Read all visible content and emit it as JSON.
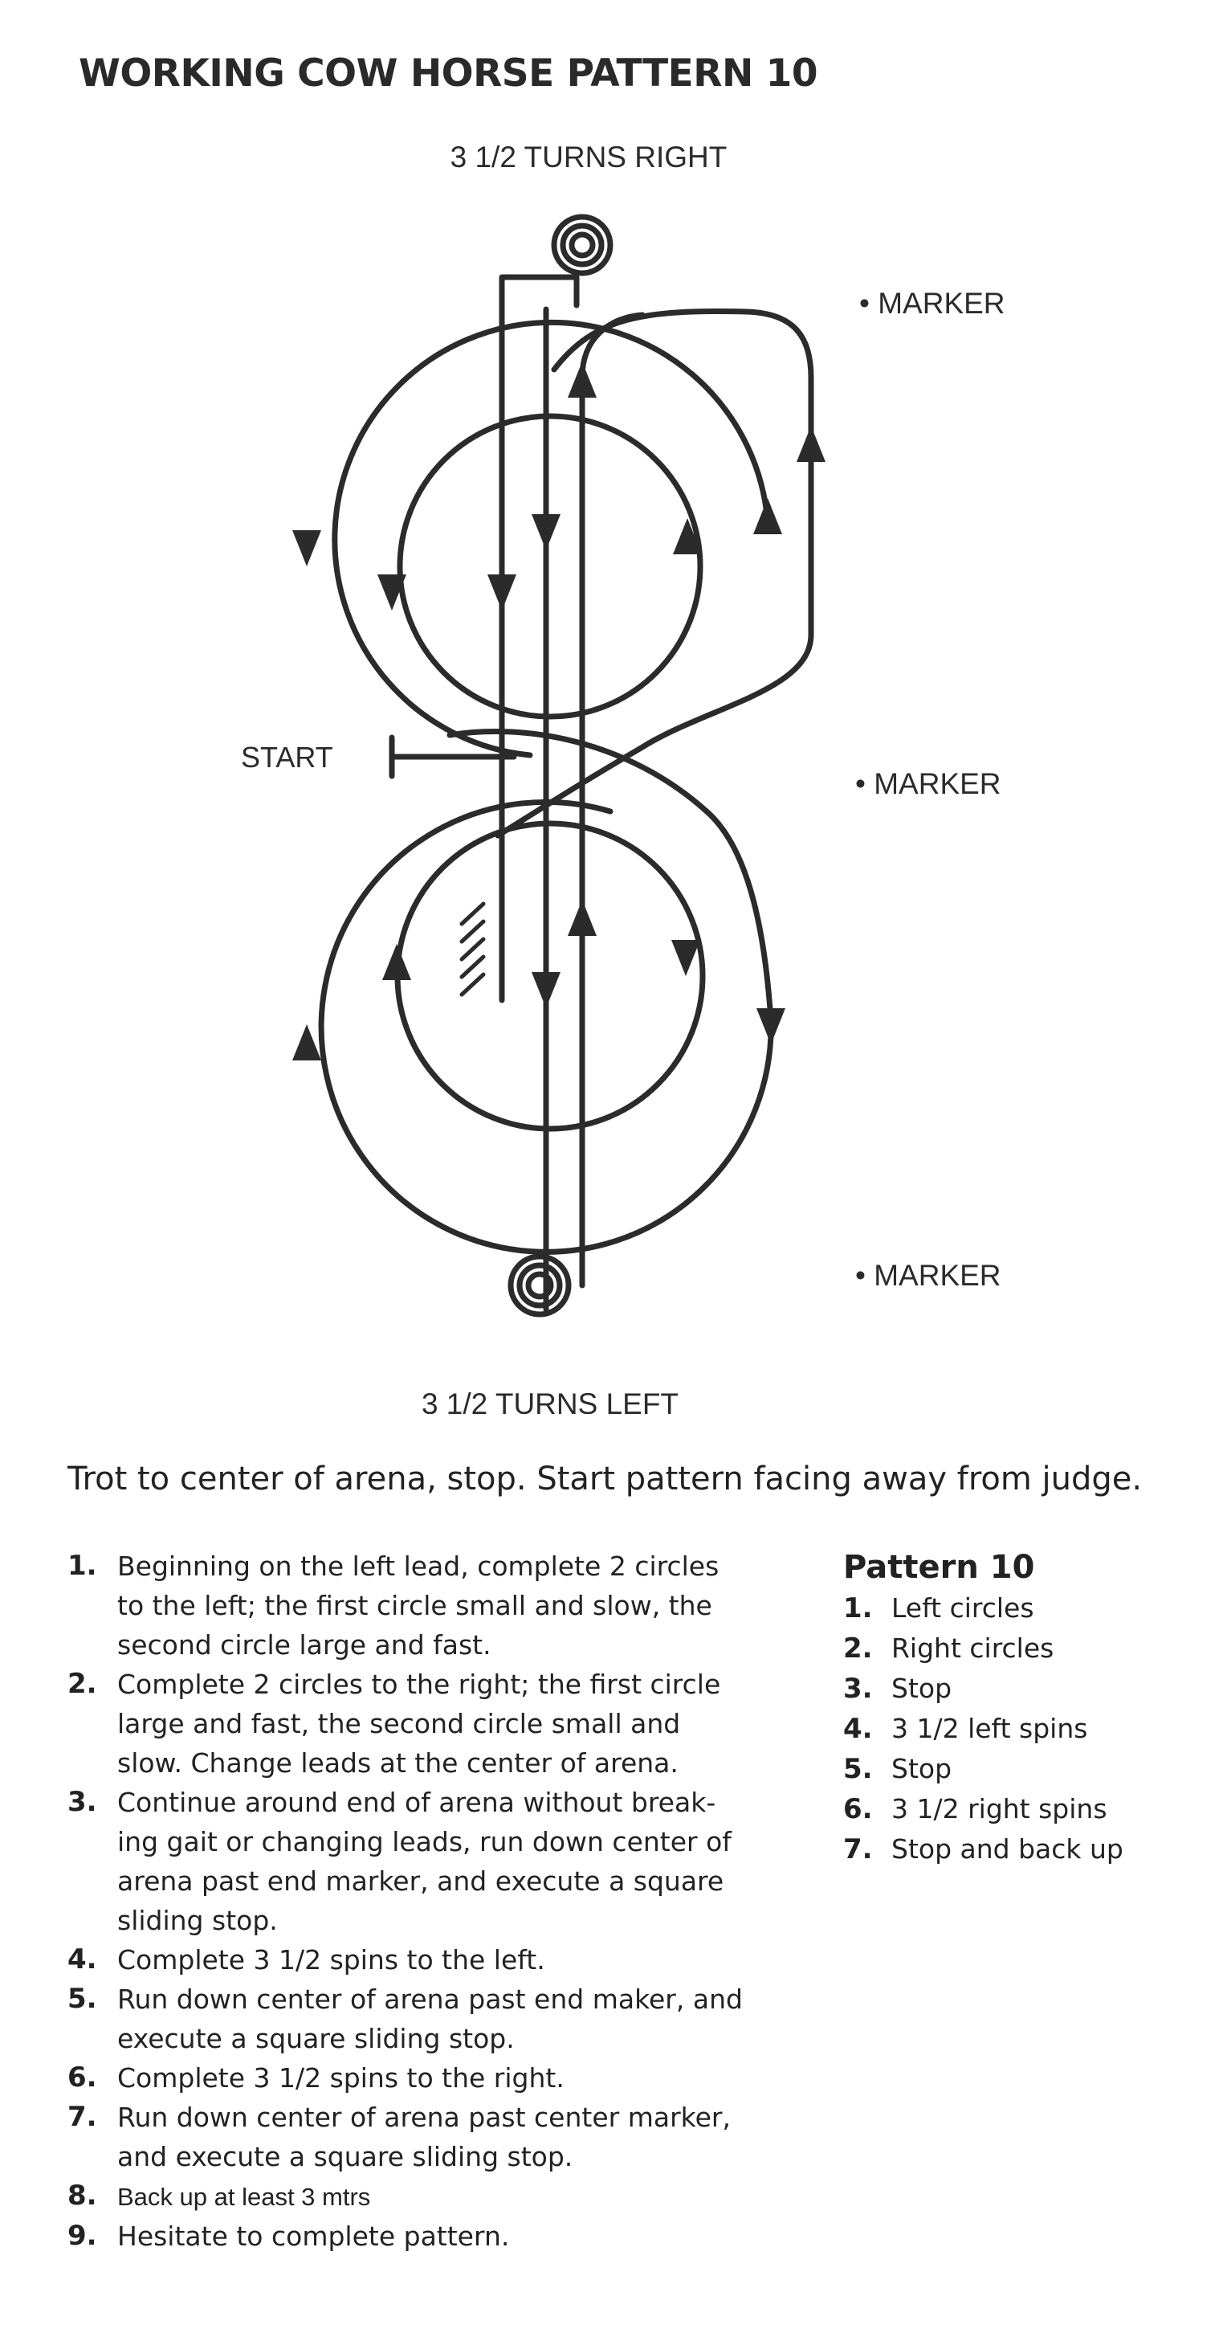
{
  "title": "WORKING COW HORSE PATTERN 10",
  "diagram": {
    "top_label": "3 1/2 TURNS RIGHT",
    "bottom_label": "3 1/2 TURNS LEFT",
    "start_label": "START",
    "marker_labels": [
      "• MARKER",
      "• MARKER",
      "• MARKER"
    ]
  },
  "intro": "Trot to center of arena, stop. Start pattern facing away from judge.",
  "steps": [
    {
      "num": "1.",
      "lines": [
        "Beginning on the left lead, complete 2 circles",
        "to the left; the first circle small and slow, the",
        "second circle large and fast."
      ]
    },
    {
      "num": "2.",
      "lines": [
        "Complete 2 circles to the right; the first circle",
        "large and fast, the second circle small and",
        "slow. Change leads at the center of arena."
      ]
    },
    {
      "num": "3.",
      "lines": [
        "Continue around end of arena without break-",
        "ing gait or changing leads, run down center of",
        "arena past end marker, and execute a square",
        "sliding stop."
      ]
    },
    {
      "num": "4.",
      "lines": [
        "Complete 3 1/2 spins to the left."
      ]
    },
    {
      "num": "5.",
      "lines": [
        "Run down center of arena past end maker, and",
        "execute a square sliding stop."
      ]
    },
    {
      "num": "6.",
      "lines": [
        "Complete 3 1/2 spins to the right."
      ]
    },
    {
      "num": "7.",
      "lines": [
        "Run down center of arena past center marker,",
        "and execute a square sliding stop."
      ]
    },
    {
      "num": "8.",
      "lines": [
        "Back up at least 3 mtrs"
      ]
    },
    {
      "num": "9.",
      "lines": [
        "Hesitate to complete pattern."
      ]
    }
  ],
  "summary": {
    "title": "Pattern 10",
    "items": [
      {
        "num": "1.",
        "text": "Left circles"
      },
      {
        "num": "2.",
        "text": "Right circles"
      },
      {
        "num": "3.",
        "text": "Stop"
      },
      {
        "num": "4.",
        "text": "3 1/2 left spins"
      },
      {
        "num": "5.",
        "text": "Stop"
      },
      {
        "num": "6.",
        "text": "3 1/2 right spins"
      },
      {
        "num": "7.",
        "text": "Stop and back up"
      }
    ]
  },
  "colors": {
    "ink": "#2b2b2b",
    "background": "#ffffff"
  }
}
